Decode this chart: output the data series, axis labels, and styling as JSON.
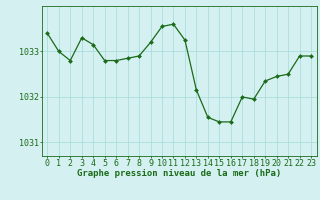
{
  "x": [
    0,
    1,
    2,
    3,
    4,
    5,
    6,
    7,
    8,
    9,
    10,
    11,
    12,
    13,
    14,
    15,
    16,
    17,
    18,
    19,
    20,
    21,
    22,
    23
  ],
  "y": [
    1033.4,
    1033.0,
    1032.8,
    1033.3,
    1033.15,
    1032.8,
    1032.8,
    1032.85,
    1032.9,
    1033.2,
    1033.55,
    1033.6,
    1033.25,
    1032.15,
    1031.55,
    1031.45,
    1031.45,
    1032.0,
    1031.95,
    1032.35,
    1032.45,
    1032.5,
    1032.9,
    1032.9
  ],
  "line_color": "#1a6b1a",
  "marker_color": "#1a6b1a",
  "bg_color": "#d5f0f0",
  "grid_color": "#aadddd",
  "axis_color": "#1a6b1a",
  "xlabel": "Graphe pression niveau de la mer (hPa)",
  "ylim": [
    1030.7,
    1034.0
  ],
  "yticks": [
    1031,
    1032,
    1033
  ],
  "xticks": [
    0,
    1,
    2,
    3,
    4,
    5,
    6,
    7,
    8,
    9,
    10,
    11,
    12,
    13,
    14,
    15,
    16,
    17,
    18,
    19,
    20,
    21,
    22,
    23
  ],
  "xlabel_fontsize": 6.5,
  "tick_fontsize": 6
}
